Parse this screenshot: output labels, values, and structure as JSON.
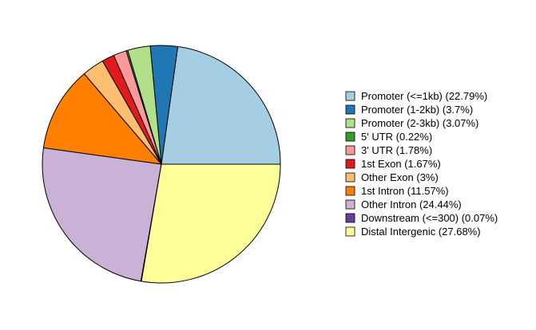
{
  "chart_data": {
    "type": "pie",
    "title": "",
    "start": "3 o'clock",
    "direction": "counterclockwise",
    "legend_position": "right",
    "slices": [
      {
        "label": "Promoter (<=1kb) (22.79%)",
        "value": 22.79,
        "color": "#A6CEE3"
      },
      {
        "label": "Promoter (1-2kb) (3.7%)",
        "value": 3.7,
        "color": "#1F78B4"
      },
      {
        "label": "Promoter (2-3kb) (3.07%)",
        "value": 3.07,
        "color": "#B2DF8A"
      },
      {
        "label": "5' UTR (0.22%)",
        "value": 0.22,
        "color": "#33A02C"
      },
      {
        "label": "3' UTR (1.78%)",
        "value": 1.78,
        "color": "#FB9A99"
      },
      {
        "label": "1st Exon (1.67%)",
        "value": 1.67,
        "color": "#E31A1C"
      },
      {
        "label": "Other Exon (3%)",
        "value": 3.0,
        "color": "#FDBF6F"
      },
      {
        "label": "1st Intron (11.57%)",
        "value": 11.57,
        "color": "#FF7F00"
      },
      {
        "label": "Other Intron (24.44%)",
        "value": 24.44,
        "color": "#CAB2D6"
      },
      {
        "label": "Downstream (<=300) (0.07%)",
        "value": 0.07,
        "color": "#6A3D9A"
      },
      {
        "label": "Distal Intergenic (27.68%)",
        "value": 27.68,
        "color": "#FFFF99"
      }
    ]
  }
}
